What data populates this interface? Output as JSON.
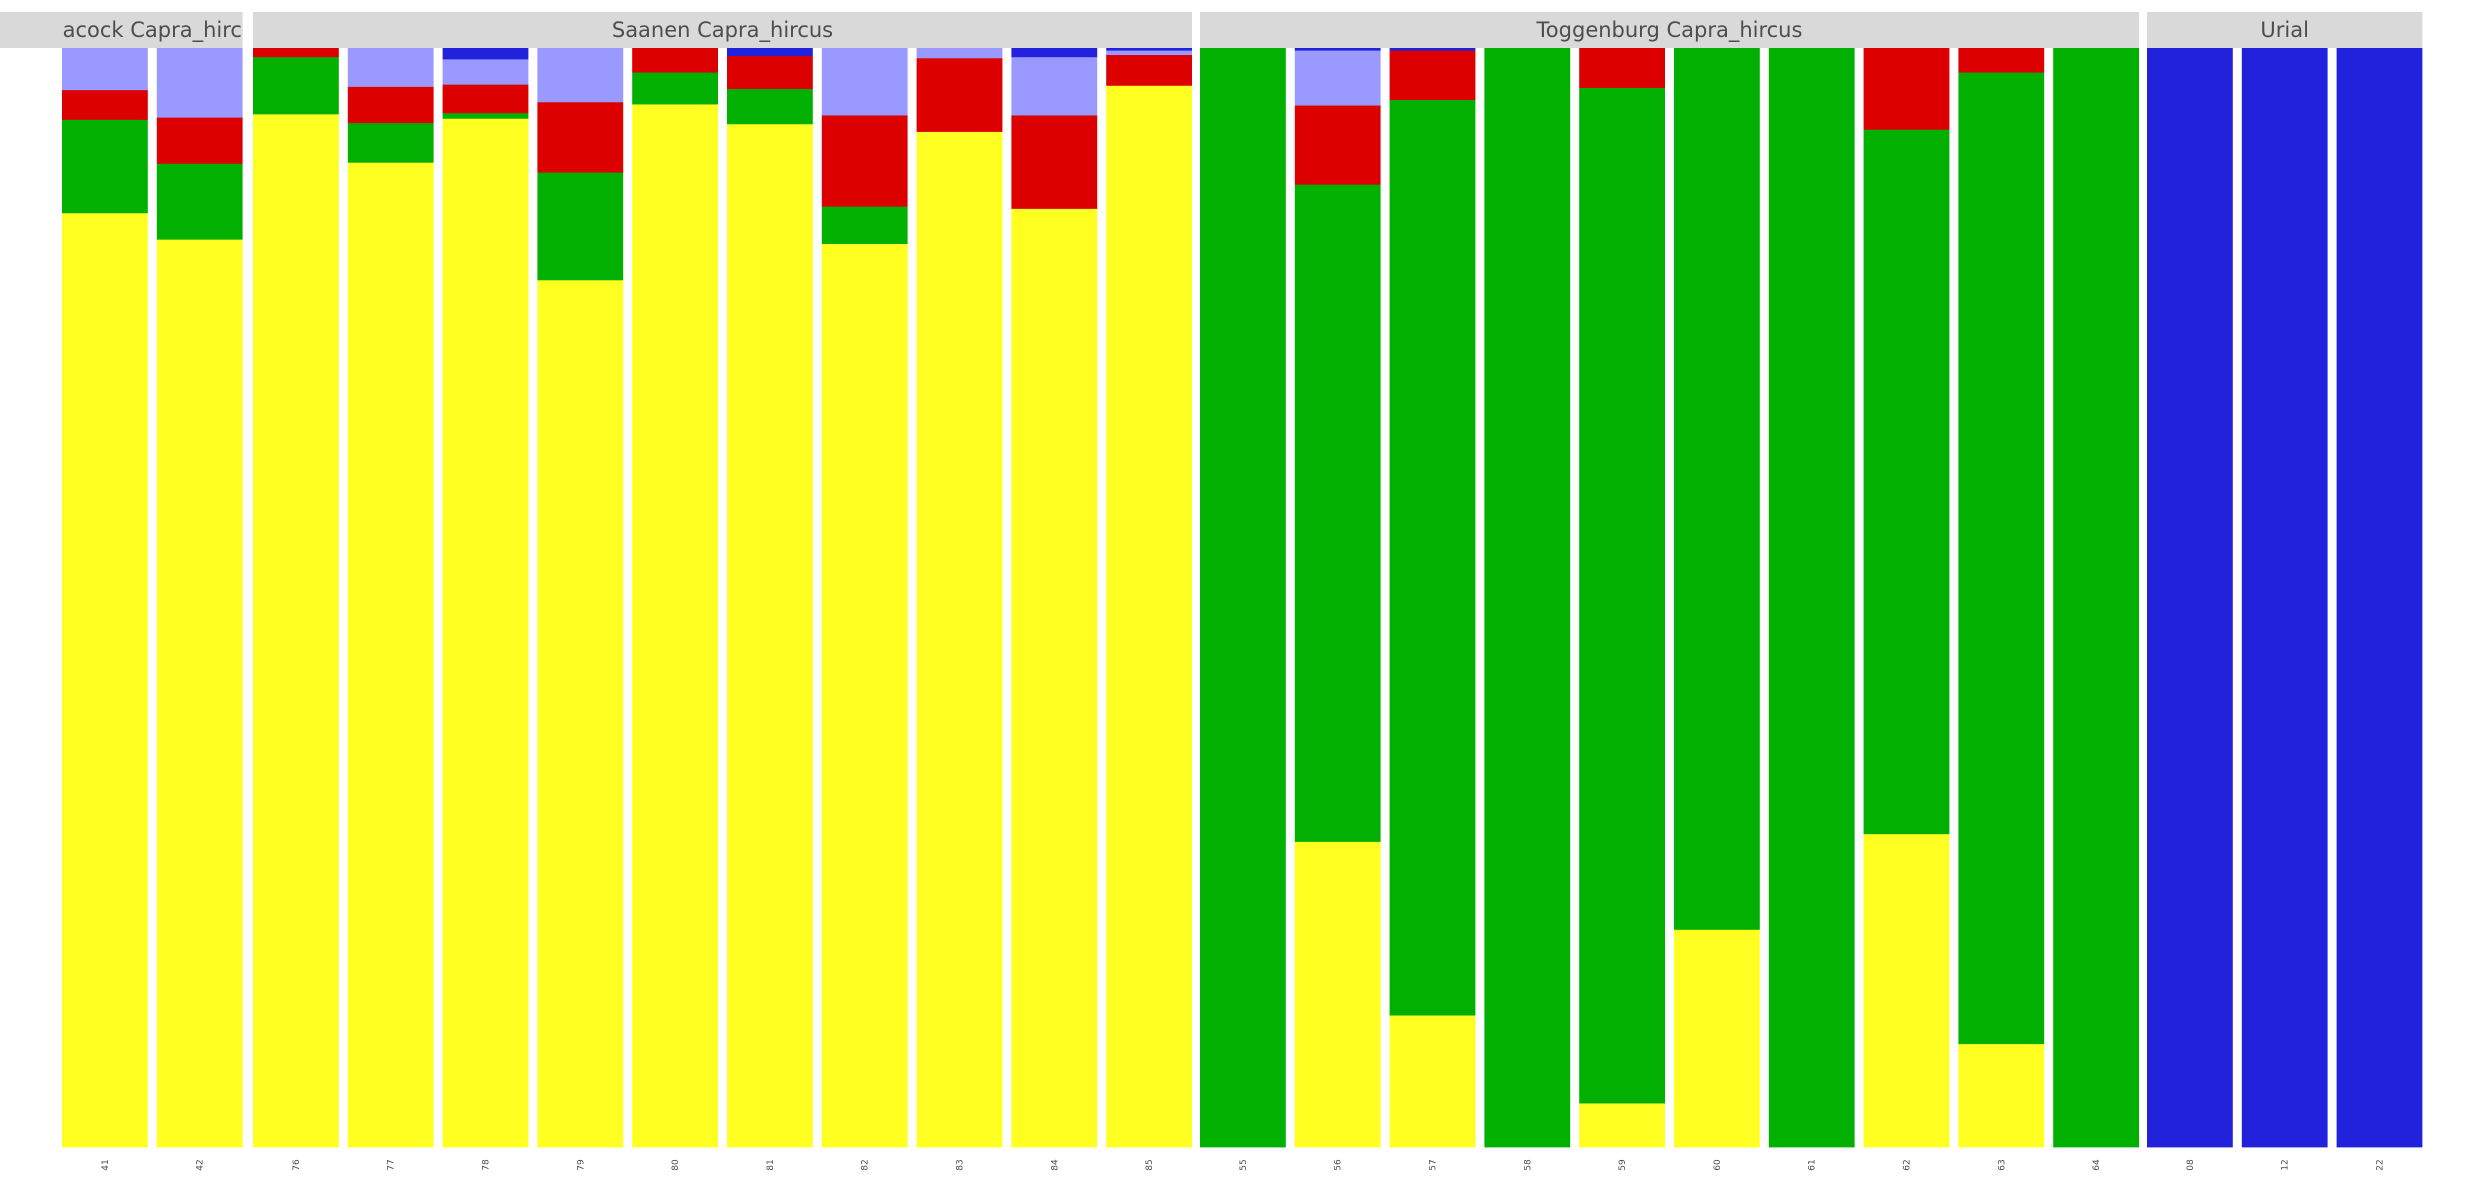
{
  "chart_data": {
    "type": "bar",
    "stacked": true,
    "ylim": [
      0,
      1
    ],
    "grid": false,
    "legend": "none",
    "component_colors": [
      "#FFFF22",
      "#02B002",
      "#DD0000",
      "#9999FF",
      "#2222DD"
    ],
    "panels": [
      {
        "label": "Peacock Capra_hircus",
        "shown_label": "acock Capra_hirc",
        "samples": [
          {
            "id": "41",
            "values": [
              0.85,
              0.085,
              0.027,
              0.038,
              0.0
            ]
          },
          {
            "id": "42",
            "values": [
              0.826,
              0.069,
              0.042,
              0.063,
              0.0
            ]
          }
        ]
      },
      {
        "label": "Saanen Capra_hircus",
        "samples": [
          {
            "id": "76",
            "values": [
              0.94,
              0.052,
              0.008,
              0.0,
              0.0
            ]
          },
          {
            "id": "77",
            "values": [
              0.896,
              0.036,
              0.033,
              0.035,
              0.0
            ]
          },
          {
            "id": "78",
            "values": [
              0.936,
              0.005,
              0.026,
              0.023,
              0.01
            ]
          },
          {
            "id": "79",
            "values": [
              0.789,
              0.098,
              0.064,
              0.049,
              0.0
            ]
          },
          {
            "id": "80",
            "values": [
              0.949,
              0.029,
              0.022,
              0.0,
              0.0
            ]
          },
          {
            "id": "81",
            "values": [
              0.931,
              0.032,
              0.03,
              0.0,
              0.007
            ]
          },
          {
            "id": "82",
            "values": [
              0.822,
              0.034,
              0.083,
              0.061,
              0.0
            ]
          },
          {
            "id": "83",
            "values": [
              0.924,
              0.0,
              0.067,
              0.009,
              0.0
            ]
          },
          {
            "id": "84",
            "values": [
              0.854,
              0.0,
              0.085,
              0.053,
              0.008
            ]
          },
          {
            "id": "85",
            "values": [
              0.966,
              0.0,
              0.028,
              0.004,
              0.002
            ]
          }
        ]
      },
      {
        "label": "Toggenburg Capra_hircus",
        "samples": [
          {
            "id": "55",
            "values": [
              0.0,
              1.0,
              0.0,
              0.0,
              0.0
            ]
          },
          {
            "id": "56",
            "values": [
              0.278,
              0.598,
              0.072,
              0.05,
              0.002
            ]
          },
          {
            "id": "57",
            "values": [
              0.12,
              0.833,
              0.045,
              0.0,
              0.002
            ]
          },
          {
            "id": "58",
            "values": [
              0.0,
              1.0,
              0.0,
              0.0,
              0.0
            ]
          },
          {
            "id": "59",
            "values": [
              0.04,
              0.924,
              0.036,
              0.0,
              0.0
            ]
          },
          {
            "id": "60",
            "values": [
              0.198,
              0.802,
              0.0,
              0.0,
              0.0
            ]
          },
          {
            "id": "61",
            "values": [
              0.0,
              1.0,
              0.0,
              0.0,
              0.0
            ]
          },
          {
            "id": "62",
            "values": [
              0.285,
              0.641,
              0.074,
              0.0,
              0.0
            ]
          },
          {
            "id": "63",
            "values": [
              0.094,
              0.884,
              0.022,
              0.0,
              0.0
            ]
          },
          {
            "id": "64",
            "values": [
              0.0,
              1.0,
              0.0,
              0.0,
              0.0
            ]
          }
        ]
      },
      {
        "label": "Urial",
        "samples": [
          {
            "id": "08",
            "values": [
              0.0,
              0.0,
              0.0,
              0.0,
              1.0
            ]
          },
          {
            "id": "12",
            "values": [
              0.0,
              0.0,
              0.0,
              0.0,
              1.0
            ]
          },
          {
            "id": "22",
            "values": [
              0.0,
              0.0,
              0.0,
              0.0,
              1.0
            ]
          }
        ]
      }
    ]
  }
}
